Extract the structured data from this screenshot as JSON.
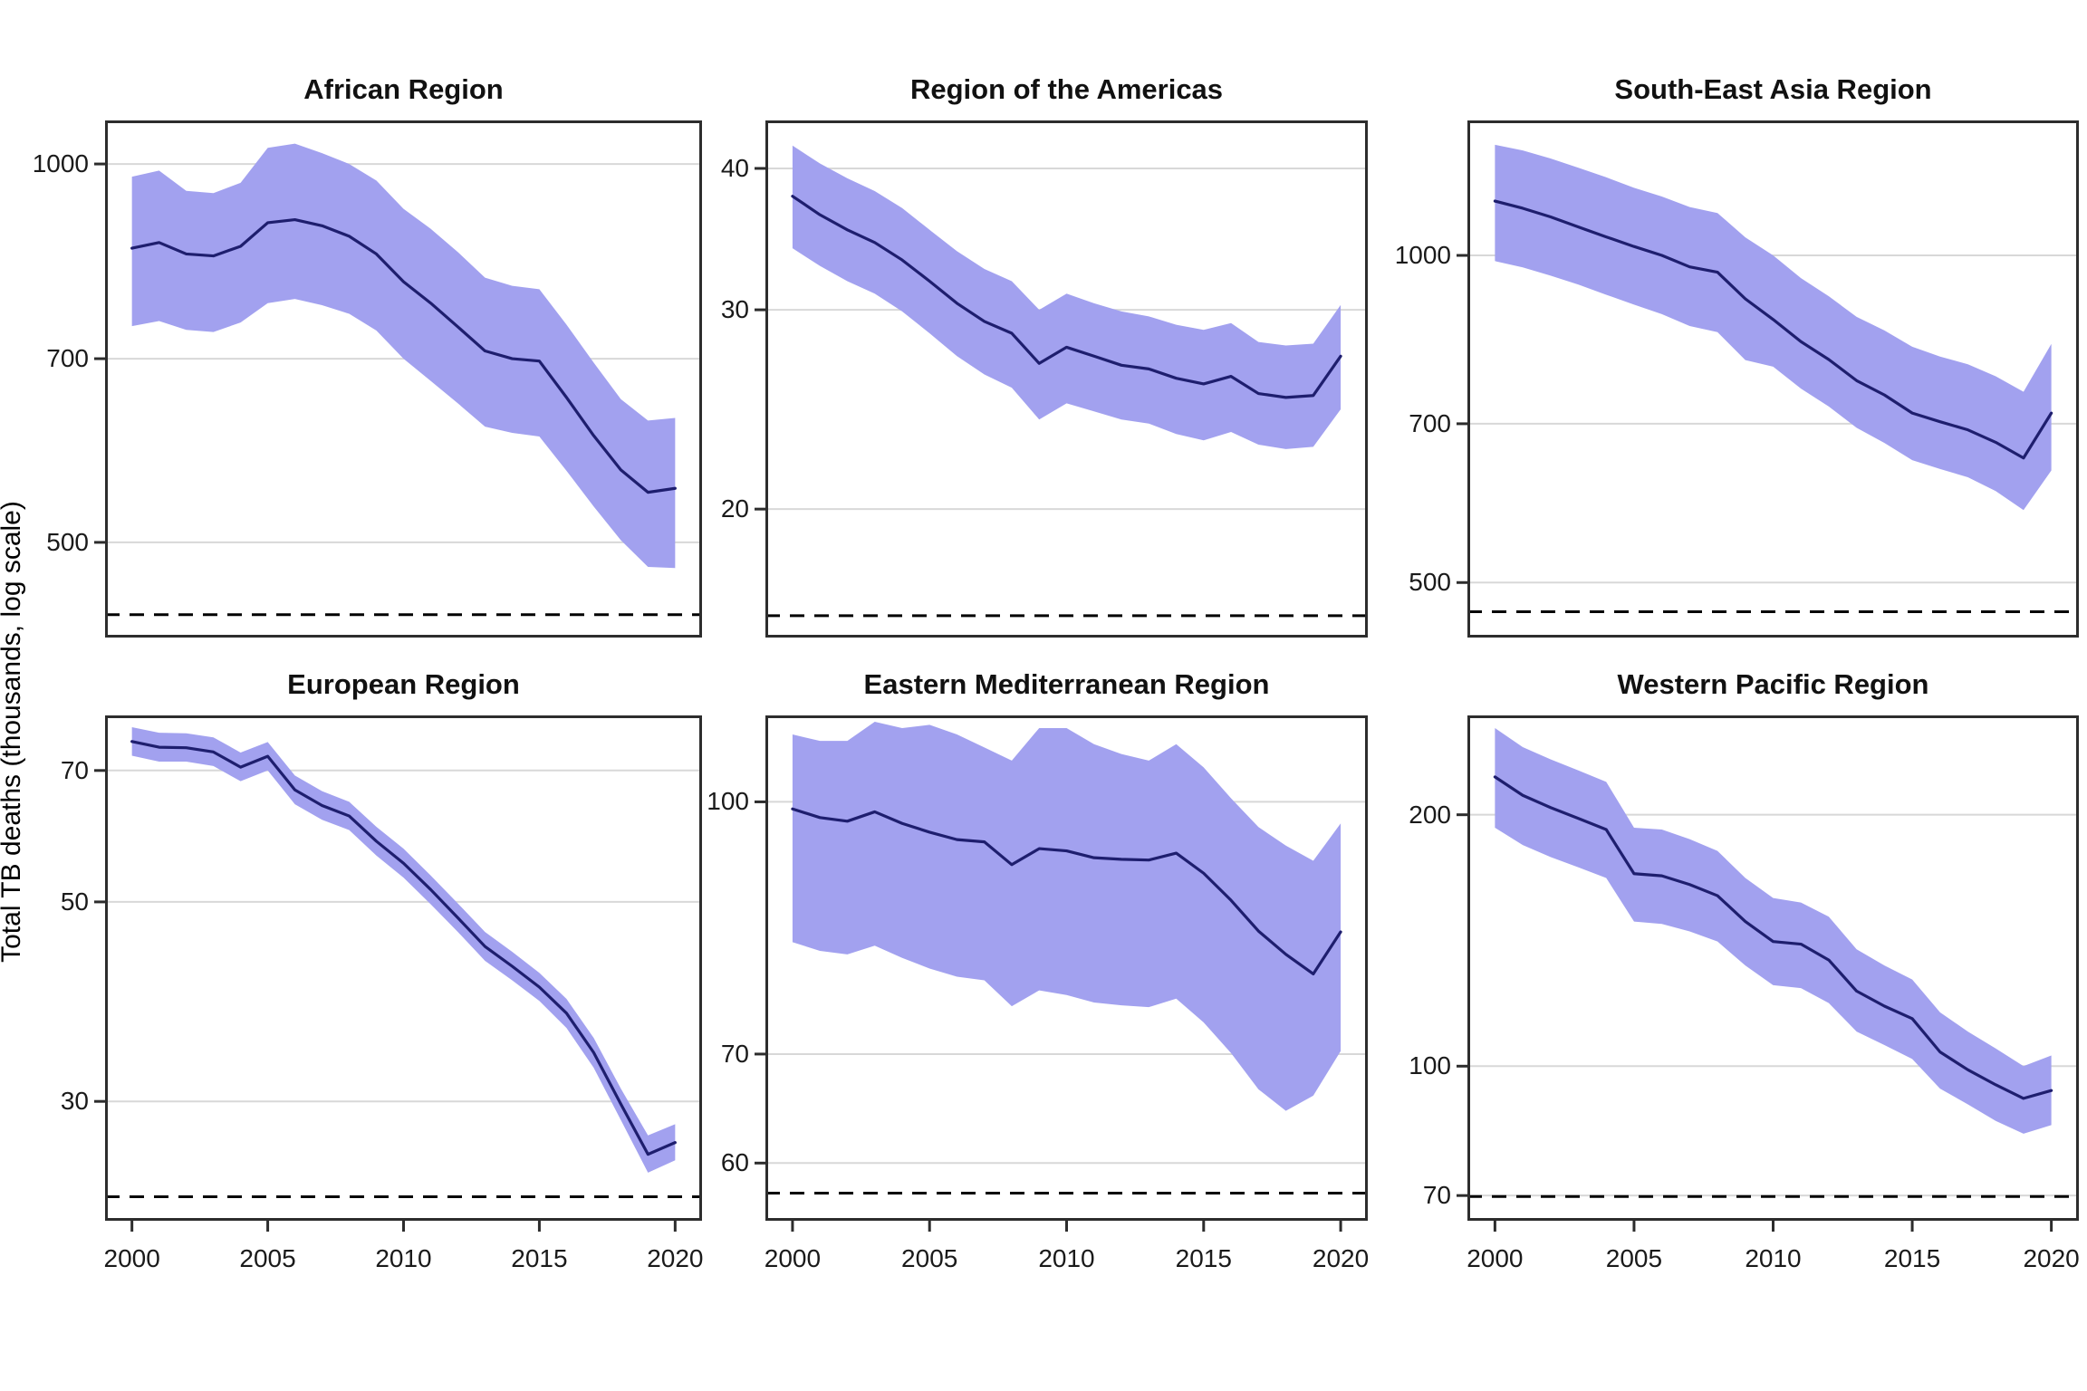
{
  "ylabel": "Total TB deaths (thousands, log scale)",
  "colors": {
    "ribbon": "#a2a1ef",
    "line": "#1e1e6e",
    "grid": "#d8d8d8",
    "axis_border": "#2d2d2d",
    "dashed_reference": "#000000",
    "text": "#1a1a1a"
  },
  "x_axis": {
    "tick_labels": [
      "2000",
      "2005",
      "2010",
      "2015",
      "2020"
    ],
    "ticks": [
      2000,
      2005,
      2010,
      2015,
      2020
    ],
    "range": [
      2000,
      2020
    ]
  },
  "years": [
    2000,
    2001,
    2002,
    2003,
    2004,
    2005,
    2006,
    2007,
    2008,
    2009,
    2010,
    2011,
    2012,
    2013,
    2014,
    2015,
    2016,
    2017,
    2018,
    2019,
    2020
  ],
  "chart_data": [
    {
      "type": "line",
      "title": "African Region",
      "log_scale": true,
      "grid": "horizontal",
      "legend": "none",
      "y_ticks": [
        1000,
        700,
        500
      ],
      "ylim": [
        420,
        1083
      ],
      "dashed_reference_line": 438,
      "series": [
        {
          "name": "estimate",
          "values": [
            857,
            866,
            848,
            845,
            860,
            898,
            903,
            893,
            876,
            848,
            806,
            775,
            742,
            710,
            700,
            697,
            652,
            608,
            571,
            548,
            552
          ]
        },
        {
          "name": "lower_bound",
          "values": [
            743,
            750,
            738,
            735,
            748,
            775,
            781,
            772,
            760,
            737,
            700,
            672,
            645,
            618,
            611,
            607,
            570,
            534,
            502,
            478,
            477
          ]
        },
        {
          "name": "upper_bound",
          "values": [
            977,
            988,
            952,
            948,
            966,
            1030,
            1038,
            1020,
            1000,
            970,
            921,
            888,
            851,
            812,
            800,
            795,
            745,
            695,
            650,
            625,
            628
          ]
        }
      ]
    },
    {
      "type": "line",
      "title": "Region of the Americas",
      "log_scale": true,
      "grid": "horizontal",
      "legend": "none",
      "y_ticks": [
        40,
        30,
        20
      ],
      "ylim": [
        15.4,
        44.1
      ],
      "dashed_reference_line": 16.1,
      "series": [
        {
          "name": "estimate",
          "values": [
            37.8,
            36.4,
            35.3,
            34.4,
            33.2,
            31.8,
            30.4,
            29.3,
            28.6,
            26.9,
            27.8,
            27.3,
            26.8,
            26.6,
            26.1,
            25.8,
            26.2,
            25.3,
            25.1,
            25.2,
            27.3
          ]
        },
        {
          "name": "lower_bound",
          "values": [
            34.0,
            32.8,
            31.8,
            31.0,
            29.9,
            28.6,
            27.3,
            26.3,
            25.6,
            24.0,
            24.8,
            24.4,
            24.0,
            23.8,
            23.3,
            23.0,
            23.4,
            22.8,
            22.6,
            22.7,
            24.5
          ]
        },
        {
          "name": "upper_bound",
          "values": [
            41.9,
            40.4,
            39.2,
            38.2,
            36.9,
            35.3,
            33.8,
            32.6,
            31.8,
            30.0,
            31.0,
            30.4,
            29.9,
            29.6,
            29.1,
            28.8,
            29.2,
            28.1,
            27.9,
            28.0,
            30.3
          ]
        }
      ]
    },
    {
      "type": "line",
      "title": "South-East Asia Region",
      "log_scale": true,
      "grid": "horizontal",
      "legend": "none",
      "y_ticks": [
        1000,
        700,
        500
      ],
      "ylim": [
        445,
        1331
      ],
      "dashed_reference_line": 470,
      "series": [
        {
          "name": "estimate",
          "values": [
            1122,
            1105,
            1085,
            1062,
            1040,
            1019,
            1000,
            976,
            965,
            912,
            873,
            833,
            802,
            767,
            744,
            716,
            703,
            691,
            673,
            651,
            716
          ]
        },
        {
          "name": "lower_bound",
          "values": [
            988,
            975,
            958,
            940,
            920,
            901,
            883,
            861,
            850,
            801,
            790,
            754,
            726,
            694,
            672,
            648,
            636,
            625,
            607,
            583,
            634
          ]
        },
        {
          "name": "upper_bound",
          "values": [
            1264,
            1249,
            1228,
            1204,
            1180,
            1154,
            1133,
            1108,
            1094,
            1039,
            1000,
            953,
            917,
            878,
            853,
            824,
            807,
            794,
            774,
            749,
            829
          ]
        }
      ]
    },
    {
      "type": "line",
      "title": "European Region",
      "log_scale": true,
      "grid": "horizontal",
      "legend": "none",
      "y_ticks": [
        70,
        50,
        30
      ],
      "ylim": [
        22.1,
        80.6
      ],
      "dashed_reference_line": 23.5,
      "series": [
        {
          "name": "estimate",
          "values": [
            75.4,
            74.3,
            74.2,
            73.4,
            70.6,
            72.6,
            66.6,
            64.0,
            62.3,
            58.4,
            55.2,
            51.6,
            48.0,
            44.6,
            42.4,
            40.2,
            37.6,
            34.0,
            29.8,
            26.2,
            27.0
          ]
        },
        {
          "name": "lower_bound",
          "values": [
            72.7,
            71.6,
            71.6,
            70.8,
            68.1,
            70.0,
            64.2,
            61.7,
            60.1,
            56.3,
            53.2,
            49.7,
            46.3,
            43.0,
            40.9,
            38.8,
            36.2,
            32.7,
            28.6,
            25.0,
            25.8
          ]
        },
        {
          "name": "upper_bound",
          "values": [
            78.2,
            77.1,
            77.0,
            76.2,
            73.3,
            75.3,
            69.1,
            66.4,
            64.6,
            60.6,
            57.3,
            53.5,
            49.8,
            46.3,
            44.0,
            41.7,
            39.0,
            35.3,
            31.0,
            27.5,
            28.3
          ]
        }
      ]
    },
    {
      "type": "line",
      "title": "Eastern Mediterranean Region",
      "log_scale": true,
      "grid": "horizontal",
      "legend": "none",
      "y_ticks": [
        100,
        70,
        60
      ],
      "ylim": [
        55.3,
        113
      ],
      "dashed_reference_line": 57.5,
      "series": [
        {
          "name": "estimate",
          "values": [
            99.0,
            97.8,
            97.3,
            98.6,
            97.0,
            95.8,
            94.8,
            94.5,
            91.5,
            93.6,
            93.3,
            92.4,
            92.2,
            92.1,
            93.0,
            90.4,
            87.0,
            83.3,
            80.6,
            78.4,
            83.2
          ]
        },
        {
          "name": "lower_bound",
          "values": [
            82.0,
            81.0,
            80.6,
            81.6,
            80.2,
            79.0,
            78.1,
            77.7,
            74.9,
            76.6,
            76.1,
            75.3,
            75.0,
            74.8,
            75.7,
            73.2,
            70.1,
            66.6,
            64.6,
            66.0,
            70.3
          ]
        },
        {
          "name": "upper_bound",
          "values": [
            110,
            109,
            109,
            112,
            111,
            111.5,
            110,
            108,
            106,
            111,
            111,
            108.5,
            107,
            106,
            108.5,
            105,
            100.5,
            96.5,
            94.0,
            92.0,
            97.0
          ]
        }
      ]
    },
    {
      "type": "line",
      "title": "Western Pacific Region",
      "log_scale": true,
      "grid": "horizontal",
      "legend": "none",
      "y_ticks": [
        200,
        100,
        70
      ],
      "ylim": [
        65.3,
        263
      ],
      "dashed_reference_line": 69.8,
      "series": [
        {
          "name": "estimate",
          "values": [
            222,
            211,
            204,
            198,
            192,
            170,
            169,
            165,
            160,
            149,
            141,
            140,
            134,
            123,
            118,
            114,
            104,
            99,
            95,
            91.5,
            93.5
          ]
        },
        {
          "name": "lower_bound",
          "values": [
            193,
            184,
            178,
            173,
            168,
            149,
            148,
            145,
            141,
            132,
            125,
            124,
            119,
            110,
            106,
            102,
            94,
            90,
            86,
            83,
            85
          ]
        },
        {
          "name": "upper_bound",
          "values": [
            254,
            241,
            233,
            226,
            219,
            193,
            192,
            187,
            181,
            168,
            159,
            157,
            151,
            138,
            132,
            127,
            116,
            110,
            105,
            100,
            103
          ]
        }
      ]
    }
  ]
}
